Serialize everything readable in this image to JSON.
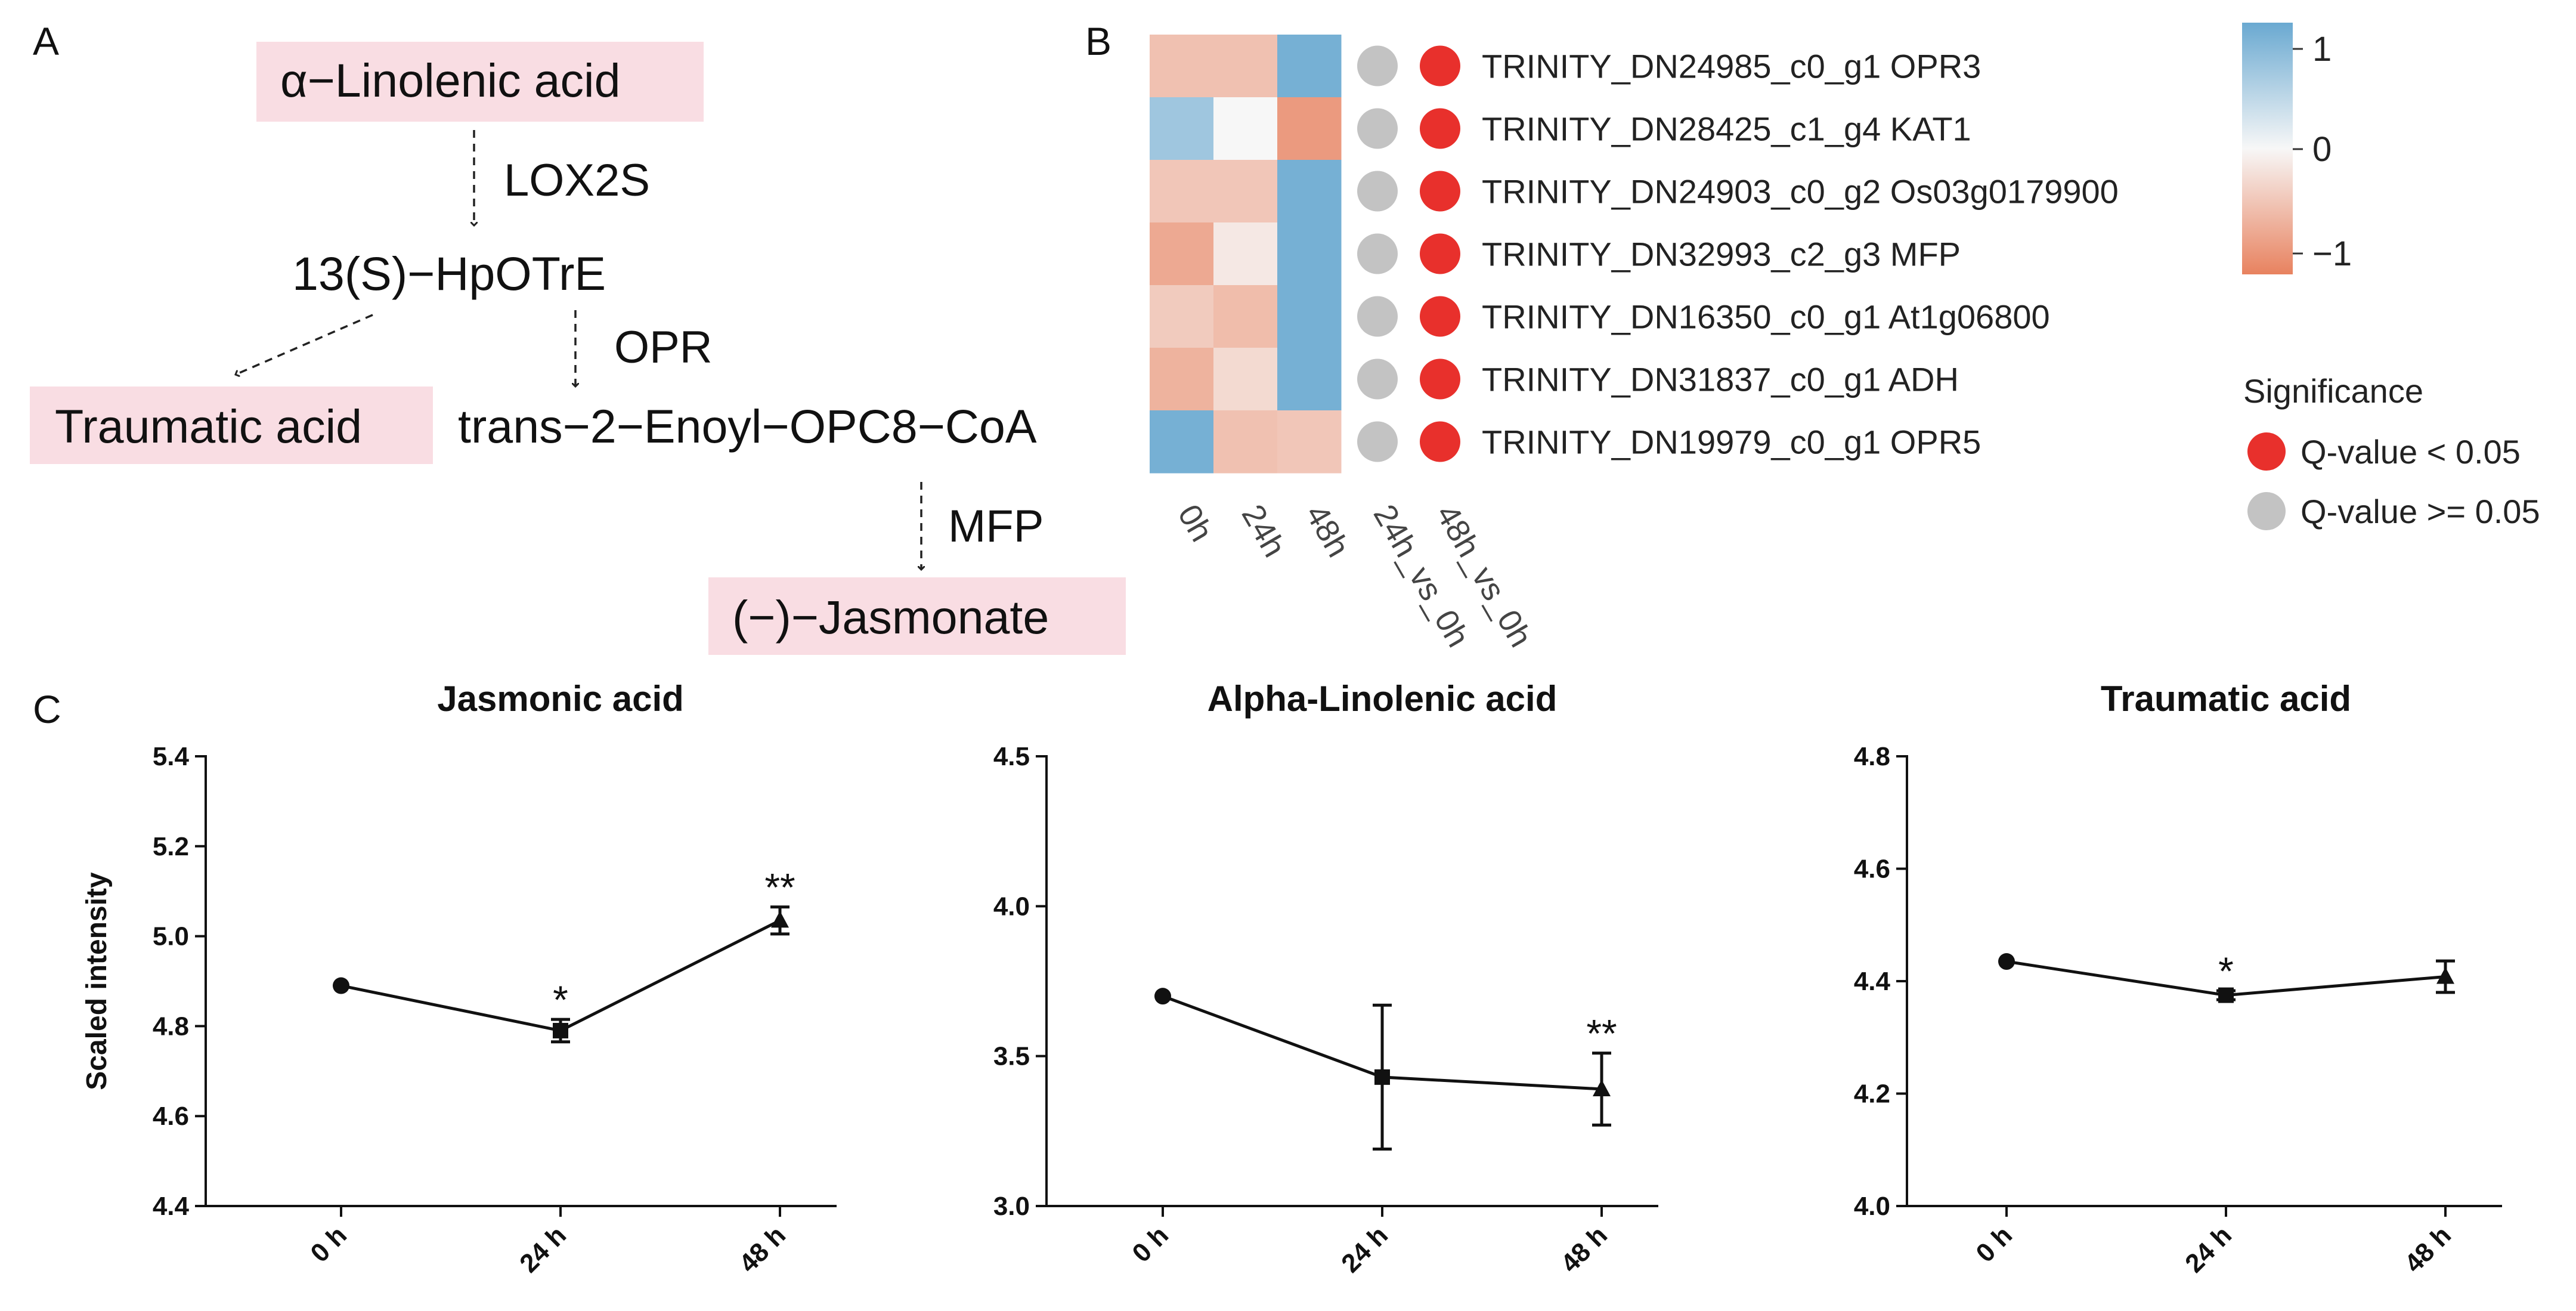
{
  "panels": {
    "a": "A",
    "b": "B",
    "c": "C"
  },
  "pathway": {
    "linolenic": "α−Linolenic acid",
    "lox2s": "LOX2S",
    "hpotre": "13(S)−HpOTrE",
    "opr": "OPR",
    "traumatic": "Traumatic acid",
    "enoyl": "trans−2−Enoyl−OPC8−CoA",
    "mfp": "MFP",
    "jasmonate": "(−)−Jasmonate",
    "highlight_color": "#f9dde3"
  },
  "heatmap": {
    "columns": [
      "0h",
      "24h",
      "48h"
    ],
    "compare_columns": [
      "24h_vs_0h",
      "48h_vs_0h"
    ],
    "genes": [
      {
        "label": "TRINITY_DN24985_c0_g1 OPR3",
        "values": [
          -0.55,
          -0.55,
          1.1
        ],
        "sig": [
          false,
          true
        ]
      },
      {
        "label": "TRINITY_DN28425_c1_g4 KAT1",
        "values": [
          0.75,
          0.0,
          -0.95
        ],
        "sig": [
          false,
          true
        ]
      },
      {
        "label": "TRINITY_DN24903_c0_g2 Os03g0179900",
        "values": [
          -0.5,
          -0.5,
          1.1
        ],
        "sig": [
          false,
          true
        ]
      },
      {
        "label": "TRINITY_DN32993_c2_g3 MFP",
        "values": [
          -0.8,
          -0.15,
          1.1
        ],
        "sig": [
          false,
          true
        ]
      },
      {
        "label": "TRINITY_DN16350_c0_g1 At1g06800",
        "values": [
          -0.45,
          -0.6,
          1.1
        ],
        "sig": [
          false,
          true
        ]
      },
      {
        "label": "TRINITY_DN31837_c0_g1 ADH",
        "values": [
          -0.7,
          -0.3,
          1.1
        ],
        "sig": [
          false,
          true
        ]
      },
      {
        "label": "TRINITY_DN19979_c0_g1 OPR5",
        "values": [
          1.1,
          -0.55,
          -0.5
        ],
        "sig": [
          false,
          true
        ]
      }
    ],
    "colorbar": {
      "ticks": [
        "1",
        "0",
        "−1"
      ],
      "range": [
        -1.2,
        1.2
      ]
    },
    "colors": {
      "high": "#6aa9d1",
      "mid": "#f7f7f7",
      "low": "#e8825f",
      "sig": "#e8302c",
      "nonsig": "#c3c3c3"
    },
    "legend": {
      "title": "Significance",
      "sig_label": "Q-value < 0.05",
      "nonsig_label": "Q-value >= 0.05"
    }
  },
  "chart_data": [
    {
      "type": "line",
      "title": "Jasmonic acid",
      "ylabel": "Scaled intensity",
      "categories": [
        "0 h",
        "24 h",
        "48 h"
      ],
      "values": [
        4.89,
        4.79,
        5.035
      ],
      "errors": [
        0.0,
        0.025,
        0.03
      ],
      "markers": [
        "circle",
        "square",
        "triangle"
      ],
      "significance": [
        "",
        "*",
        "**"
      ],
      "ylim": [
        4.4,
        5.4
      ],
      "yticks": [
        4.4,
        4.6,
        4.8,
        5.0,
        5.2,
        5.4
      ],
      "ytick_labels": [
        "4.4",
        "4.6",
        "4.8",
        "5.0",
        "5.2",
        "5.4"
      ]
    },
    {
      "type": "line",
      "title": "Alpha-Linolenic acid",
      "ylabel": "",
      "categories": [
        "0 h",
        "24 h",
        "48 h"
      ],
      "values": [
        3.7,
        3.43,
        3.39
      ],
      "errors": [
        0.0,
        0.24,
        0.12
      ],
      "markers": [
        "circle",
        "square",
        "triangle"
      ],
      "significance": [
        "",
        "",
        "**"
      ],
      "ylim": [
        3.0,
        4.5
      ],
      "yticks": [
        3.0,
        3.5,
        4.0,
        4.5
      ],
      "ytick_labels": [
        "3.0",
        "3.5",
        "4.0",
        "4.5"
      ]
    },
    {
      "type": "line",
      "title": "Traumatic acid",
      "ylabel": "",
      "categories": [
        "0 h",
        "24 h",
        "48 h"
      ],
      "values": [
        4.435,
        4.375,
        4.408
      ],
      "errors": [
        0.0,
        0.008,
        0.028
      ],
      "markers": [
        "circle",
        "square",
        "triangle"
      ],
      "significance": [
        "",
        "*",
        ""
      ],
      "ylim": [
        4.0,
        4.8
      ],
      "yticks": [
        4.0,
        4.2,
        4.4,
        4.6,
        4.8
      ],
      "ytick_labels": [
        "4.0",
        "4.2",
        "4.4",
        "4.6",
        "4.8"
      ]
    }
  ]
}
